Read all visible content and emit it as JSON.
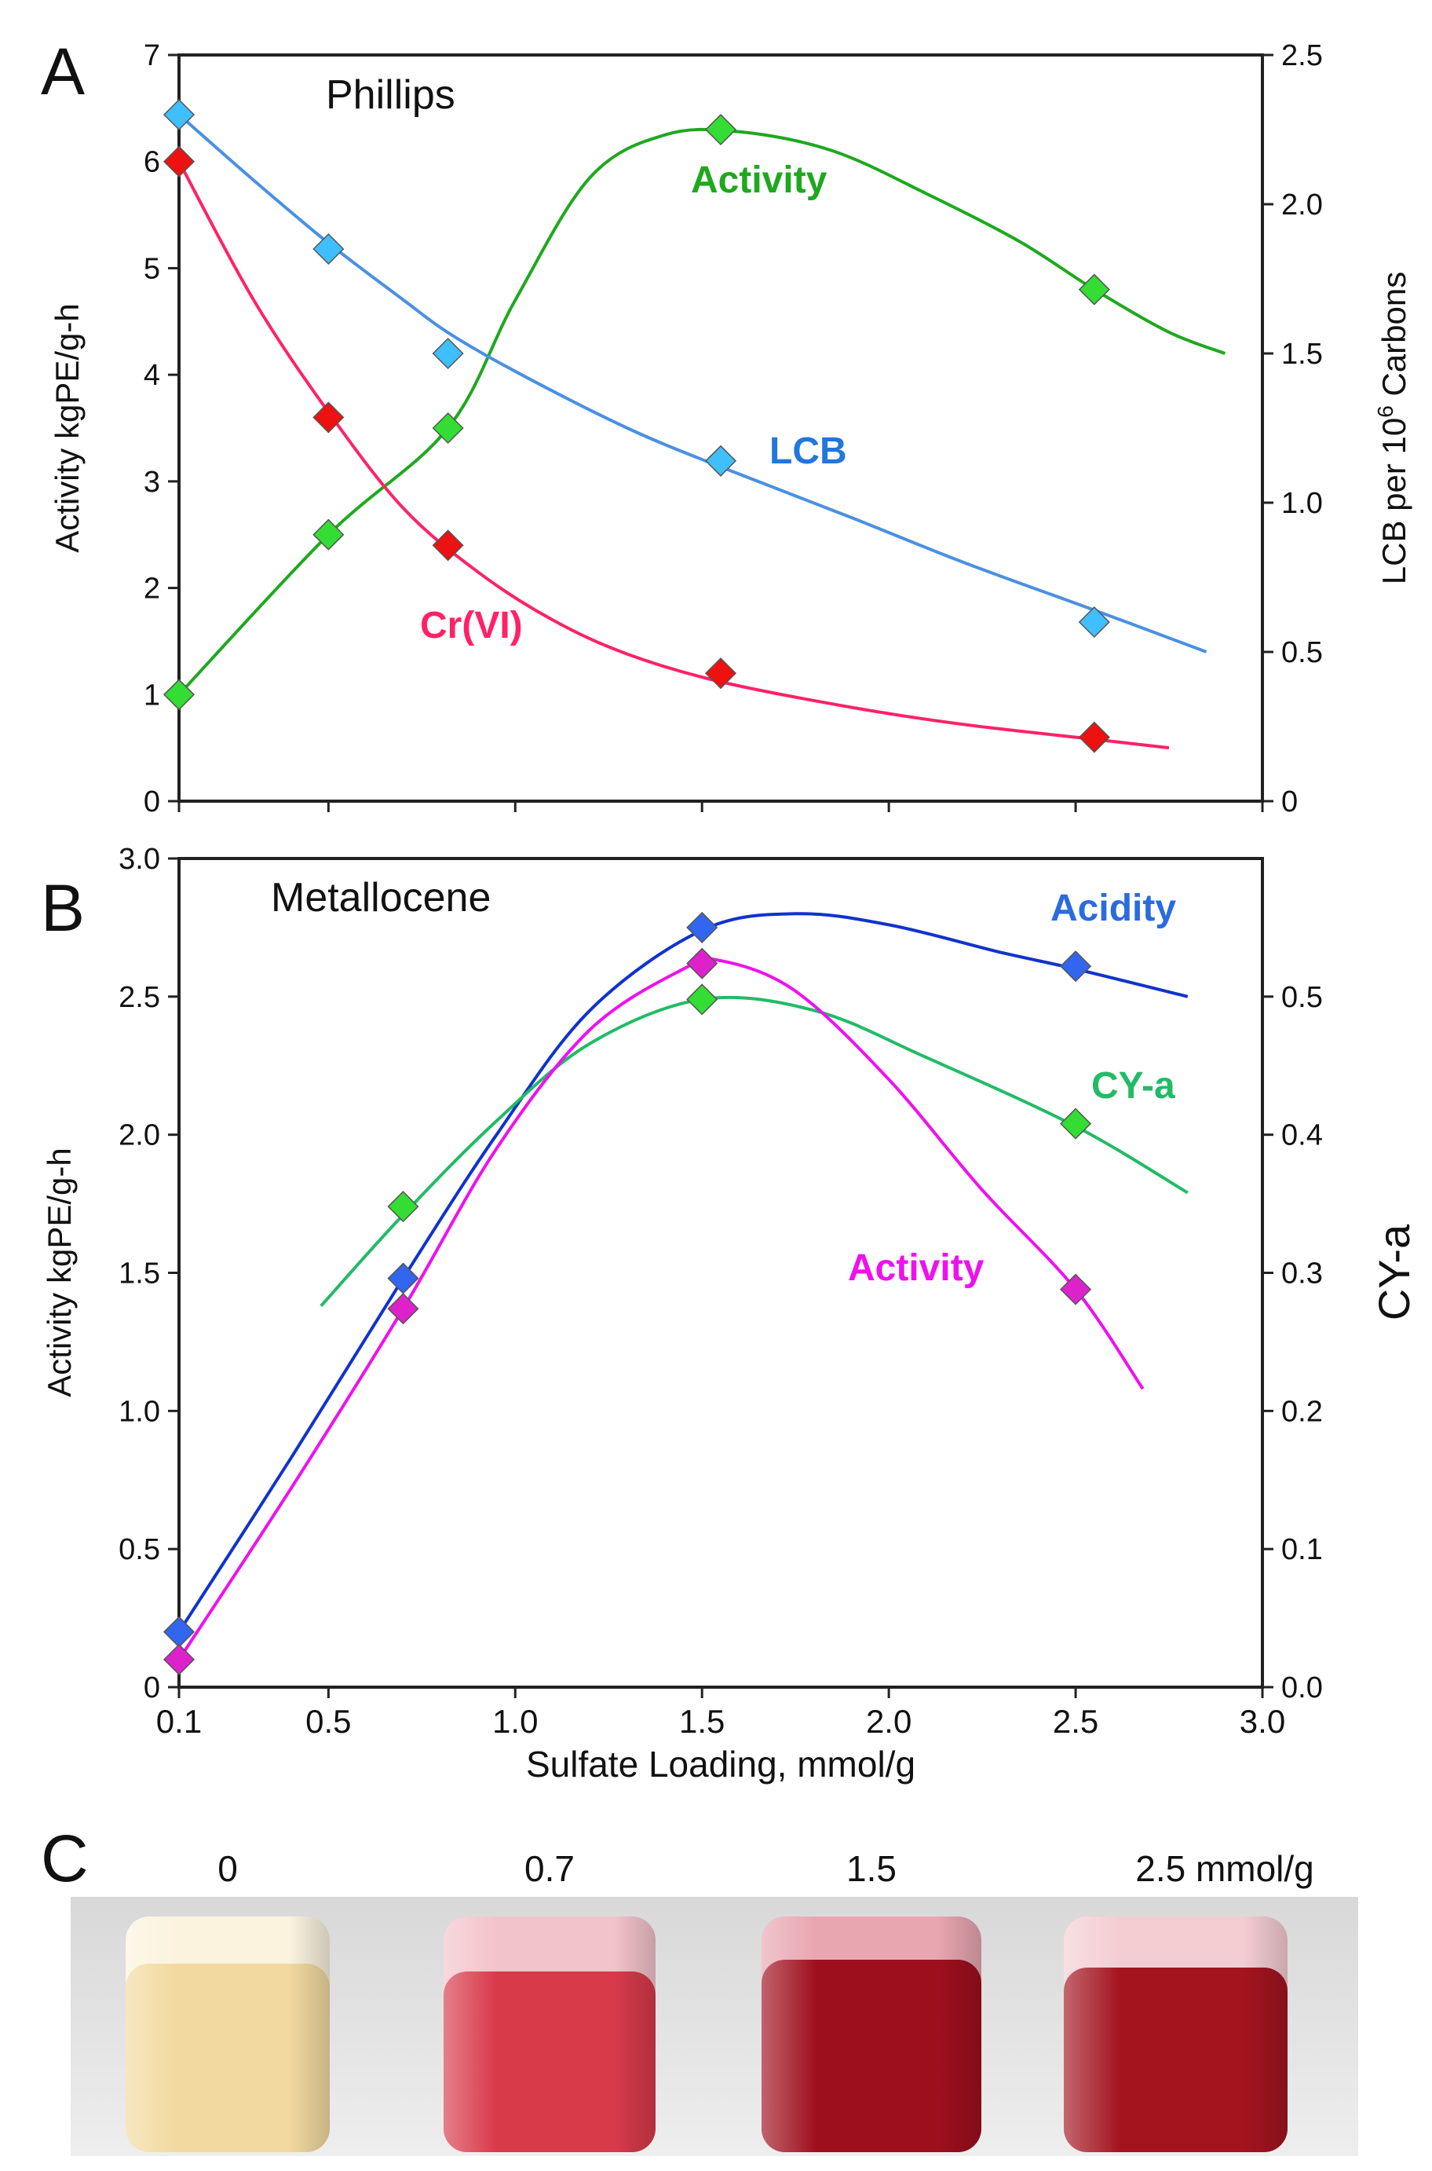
{
  "chart_data": [
    {
      "panel": "A",
      "type": "line",
      "title": "Phillips",
      "xlabel": "",
      "ylabel": "Activity kgPE/g-h",
      "y2label_prefix": "LCB per 10",
      "y2label_sup": "6",
      "y2label_suffix": " Carbons",
      "xlim": [
        0.1,
        3.0
      ],
      "ylim": [
        0,
        7
      ],
      "y2lim": [
        0,
        2.5
      ],
      "yticks": [
        "0",
        "1",
        "2",
        "3",
        "4",
        "5",
        "6",
        "7"
      ],
      "y2ticks": [
        "0",
        "0.5",
        "1.0",
        "1.5",
        "2.0",
        "2.5"
      ],
      "series": [
        {
          "name": "Activity",
          "axis": "left",
          "color": "#1fa81f",
          "marker": "#33dd33",
          "points": [
            [
              0.1,
              1.0
            ],
            [
              0.5,
              2.5
            ],
            [
              0.82,
              3.5
            ],
            [
              1.55,
              6.3
            ],
            [
              2.55,
              4.8
            ]
          ],
          "curve": [
            [
              0.1,
              1.0
            ],
            [
              0.5,
              2.5
            ],
            [
              0.82,
              3.5
            ],
            [
              1.0,
              4.7
            ],
            [
              1.2,
              5.85
            ],
            [
              1.4,
              6.25
            ],
            [
              1.6,
              6.28
            ],
            [
              1.85,
              6.1
            ],
            [
              2.1,
              5.7
            ],
            [
              2.35,
              5.25
            ],
            [
              2.55,
              4.8
            ],
            [
              2.75,
              4.4
            ],
            [
              2.9,
              4.2
            ]
          ]
        },
        {
          "name": "LCB",
          "axis": "right",
          "color": "#4a90e2",
          "marker": "#3fbfff",
          "points": [
            [
              0.1,
              2.3
            ],
            [
              0.5,
              1.85
            ],
            [
              0.82,
              1.5
            ],
            [
              1.55,
              1.14
            ],
            [
              2.55,
              0.6
            ]
          ],
          "curve": [
            [
              0.1,
              2.3
            ],
            [
              0.3,
              2.08
            ],
            [
              0.5,
              1.87
            ],
            [
              0.7,
              1.68
            ],
            [
              0.82,
              1.57
            ],
            [
              1.0,
              1.44
            ],
            [
              1.3,
              1.25
            ],
            [
              1.55,
              1.12
            ],
            [
              1.9,
              0.95
            ],
            [
              2.2,
              0.8
            ],
            [
              2.55,
              0.64
            ],
            [
              2.85,
              0.5
            ]
          ]
        },
        {
          "name": "Cr(VI)",
          "axis": "left",
          "color": "#ff2266",
          "marker": "#ee1111",
          "points": [
            [
              0.1,
              6.0
            ],
            [
              0.5,
              3.6
            ],
            [
              0.82,
              2.4
            ],
            [
              1.55,
              1.2
            ],
            [
              2.55,
              0.6
            ]
          ],
          "curve": [
            [
              0.1,
              6.0
            ],
            [
              0.3,
              4.7
            ],
            [
              0.5,
              3.65
            ],
            [
              0.7,
              2.75
            ],
            [
              0.9,
              2.15
            ],
            [
              1.1,
              1.7
            ],
            [
              1.3,
              1.38
            ],
            [
              1.55,
              1.12
            ],
            [
              1.9,
              0.88
            ],
            [
              2.2,
              0.72
            ],
            [
              2.55,
              0.58
            ],
            [
              2.75,
              0.5
            ]
          ]
        }
      ]
    },
    {
      "panel": "B",
      "type": "line",
      "title": "Metallocene",
      "xlabel": "Sulfate Loading, mmol/g",
      "ylabel": "Activity kgPE/g-h",
      "y2label": "CY-a",
      "xlim": [
        0.1,
        3.0
      ],
      "ylim": [
        0,
        3.0
      ],
      "y2lim": [
        0,
        0.6
      ],
      "xticks": [
        0.1,
        0.5,
        1.0,
        1.5,
        2.0,
        2.5,
        3.0
      ],
      "xticklabels": [
        "0.1",
        "0.5",
        "1.0",
        "1.5",
        "2.0",
        "2.5",
        "3.0"
      ],
      "yticks": [
        "0",
        "0.5",
        "1.0",
        "1.5",
        "2.0",
        "2.5",
        "3.0"
      ],
      "y2ticks": [
        "0.0",
        "0.1",
        "0.2",
        "0.3",
        "0.4",
        "0.5"
      ],
      "series": [
        {
          "name": "Acidity",
          "axis": "left",
          "color": "#1133cc",
          "marker": "#3366ee",
          "points": [
            [
              0.1,
              0.2
            ],
            [
              0.7,
              1.48
            ],
            [
              1.5,
              2.75
            ],
            [
              2.5,
              2.61
            ]
          ],
          "curve": [
            [
              0.1,
              0.2
            ],
            [
              0.4,
              0.83
            ],
            [
              0.7,
              1.48
            ],
            [
              0.95,
              2.0
            ],
            [
              1.2,
              2.45
            ],
            [
              1.5,
              2.74
            ],
            [
              1.75,
              2.8
            ],
            [
              2.0,
              2.76
            ],
            [
              2.3,
              2.66
            ],
            [
              2.5,
              2.6
            ],
            [
              2.8,
              2.5
            ]
          ]
        },
        {
          "name": "CY-a",
          "axis": "right",
          "color": "#22bb66",
          "marker": "#33dd33",
          "points": [
            [
              0.7,
              0.348
            ],
            [
              1.5,
              0.498
            ],
            [
              2.5,
              0.408
            ]
          ],
          "curve": [
            [
              0.48,
              0.276
            ],
            [
              0.7,
              0.342
            ],
            [
              0.95,
              0.41
            ],
            [
              1.2,
              0.466
            ],
            [
              1.5,
              0.498
            ],
            [
              1.8,
              0.49
            ],
            [
              2.1,
              0.456
            ],
            [
              2.5,
              0.406
            ],
            [
              2.8,
              0.358
            ]
          ]
        },
        {
          "name": "Activity",
          "axis": "left",
          "color": "#ee11ee",
          "marker": "#dd22cc",
          "points": [
            [
              0.1,
              0.1
            ],
            [
              0.7,
              1.37
            ],
            [
              1.5,
              2.62
            ],
            [
              2.5,
              1.44
            ]
          ],
          "curve": [
            [
              0.1,
              0.1
            ],
            [
              0.4,
              0.72
            ],
            [
              0.7,
              1.37
            ],
            [
              0.95,
              1.95
            ],
            [
              1.2,
              2.38
            ],
            [
              1.45,
              2.6
            ],
            [
              1.55,
              2.63
            ],
            [
              1.75,
              2.52
            ],
            [
              2.0,
              2.2
            ],
            [
              2.25,
              1.8
            ],
            [
              2.5,
              1.44
            ],
            [
              2.68,
              1.08
            ]
          ]
        }
      ]
    }
  ],
  "panel_c": {
    "letter": "C",
    "vials": [
      {
        "label": "0",
        "color": "#f2d9a0"
      },
      {
        "label": "0.7",
        "color": "#d83a4a"
      },
      {
        "label": "1.5",
        "color": "#9e0f1e"
      },
      {
        "label": "2.5 mmol/g",
        "color": "#a3141f"
      }
    ]
  }
}
